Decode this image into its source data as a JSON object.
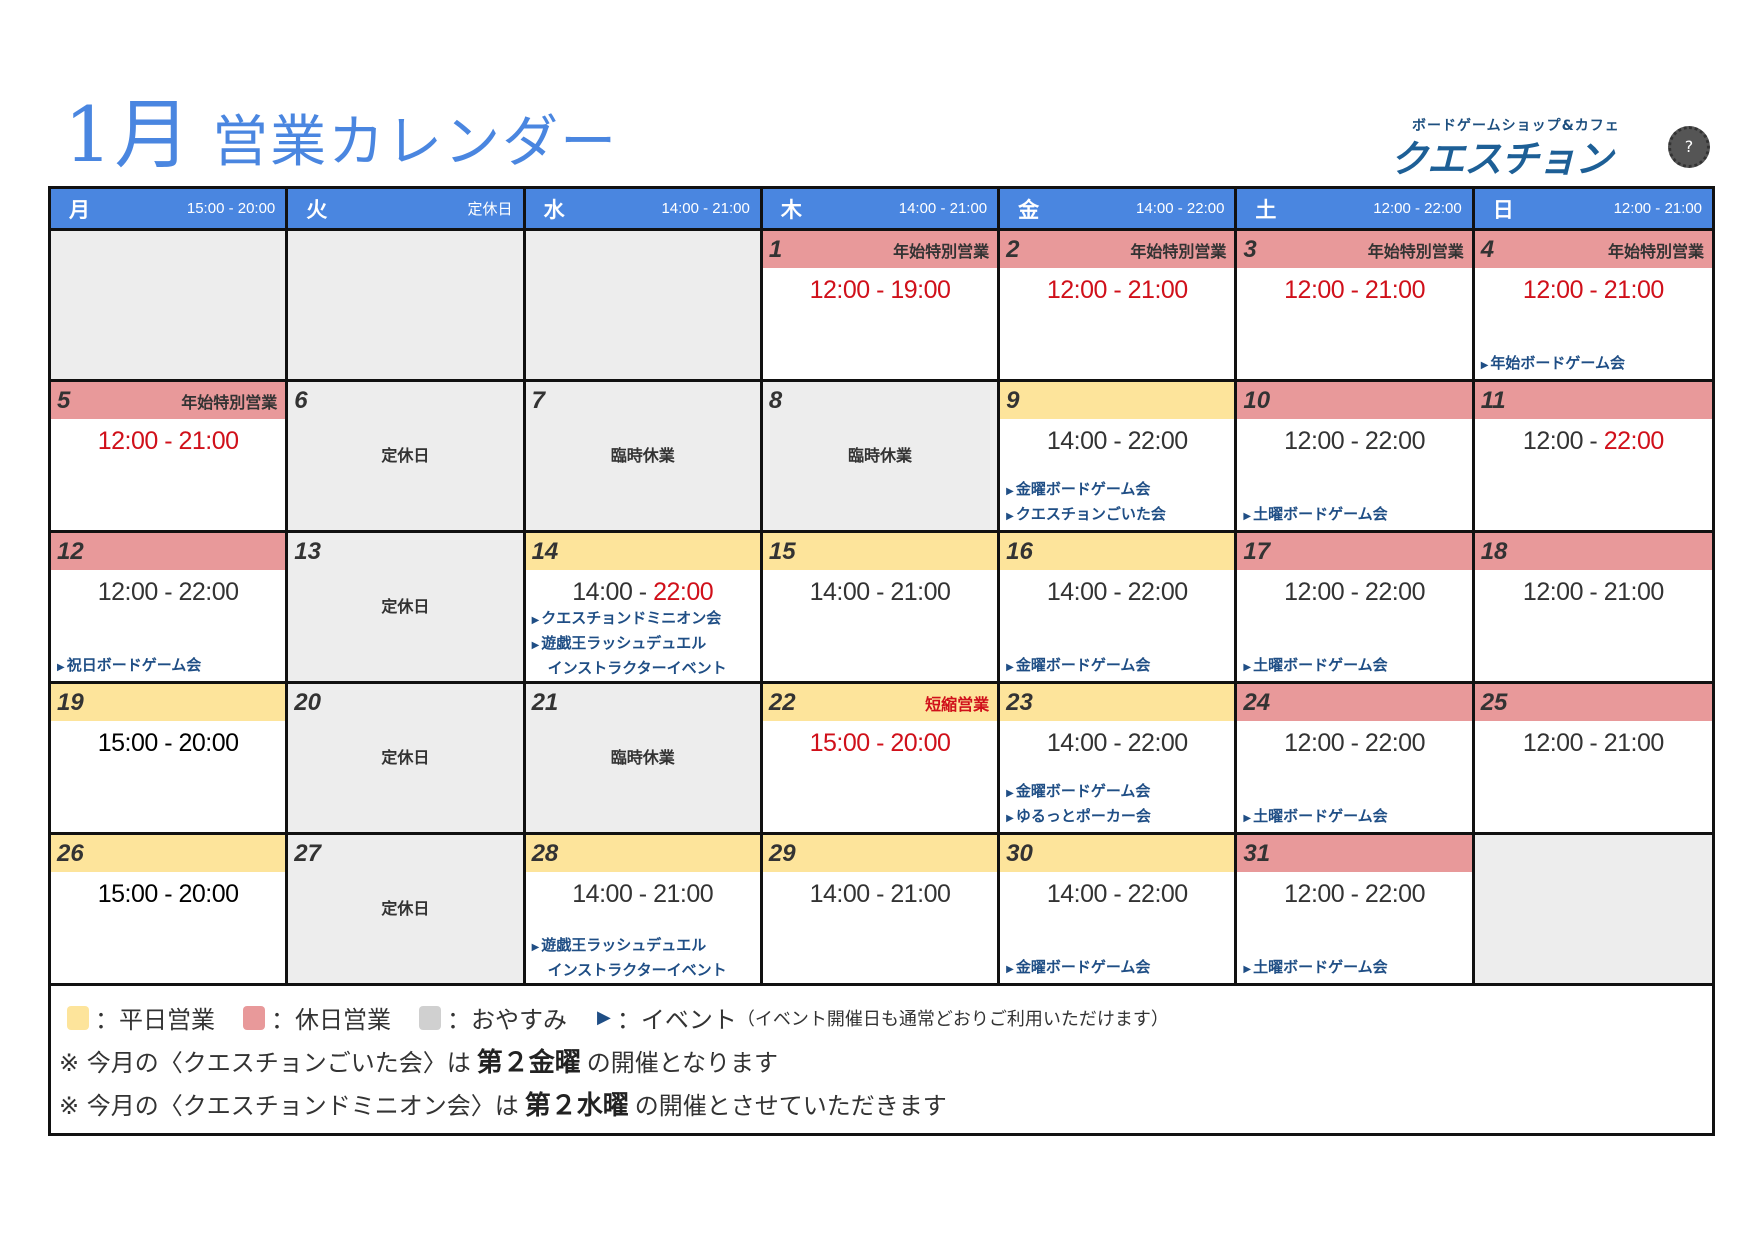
{
  "title": {
    "month": "1月",
    "text": " 営業カレンダー"
  },
  "logo": {
    "subtitle": "ボードゲームショップ&カフェ",
    "name": "クエスチョン"
  },
  "colors": {
    "header": "#4a86e0",
    "weekday": "#fde49b",
    "holiday": "#e8999a",
    "off": "#ededed",
    "event": "#1f4e85",
    "red": "#d0101a"
  },
  "header": [
    {
      "day": "月",
      "hours": "15:00 - 20:00"
    },
    {
      "day": "火",
      "hours": "定休日"
    },
    {
      "day": "水",
      "hours": "14:00 - 21:00"
    },
    {
      "day": "木",
      "hours": "14:00 - 21:00"
    },
    {
      "day": "金",
      "hours": "14:00 - 22:00"
    },
    {
      "day": "土",
      "hours": "12:00 - 22:00"
    },
    {
      "day": "日",
      "hours": "12:00 - 21:00"
    }
  ],
  "weeks": [
    [
      {
        "type": "empty"
      },
      {
        "type": "empty"
      },
      {
        "type": "empty"
      },
      {
        "type": "holiday",
        "day": "1",
        "label": "年始特別営業",
        "start": "12:00",
        "end": "19:00",
        "start_red": true,
        "end_red": true
      },
      {
        "type": "holiday",
        "day": "2",
        "label": "年始特別営業",
        "start": "12:00",
        "end": "21:00",
        "start_red": true,
        "end_red": true
      },
      {
        "type": "holiday",
        "day": "3",
        "label": "年始特別営業",
        "start": "12:00",
        "end": "21:00",
        "start_red": true,
        "end_red": true
      },
      {
        "type": "holiday",
        "day": "4",
        "label": "年始特別営業",
        "start": "12:00",
        "end": "21:00",
        "start_red": true,
        "end_red": true,
        "events": [
          [
            "年始ボードゲーム会"
          ]
        ]
      }
    ],
    [
      {
        "type": "holiday",
        "day": "5",
        "label": "年始特別営業",
        "start": "12:00",
        "end": "21:00",
        "start_red": true,
        "end_red": true
      },
      {
        "type": "off",
        "day": "6",
        "closed": "定休日"
      },
      {
        "type": "off",
        "day": "7",
        "closed": "臨時休業"
      },
      {
        "type": "off",
        "day": "8",
        "closed": "臨時休業"
      },
      {
        "type": "weekday",
        "day": "9",
        "start": "14:00",
        "end": "22:00",
        "events": [
          [
            "金曜ボードゲーム会"
          ],
          [
            "クエスチョンごいた会"
          ]
        ]
      },
      {
        "type": "holiday",
        "day": "10",
        "start": "12:00",
        "end": "22:00",
        "events": [
          [
            "土曜ボードゲーム会"
          ]
        ]
      },
      {
        "type": "holiday",
        "day": "11",
        "start": "12:00",
        "end": "22:00",
        "end_red": true
      }
    ],
    [
      {
        "type": "holiday",
        "day": "12",
        "start": "12:00",
        "end": "22:00",
        "events": [
          [
            "祝日ボードゲーム会"
          ]
        ]
      },
      {
        "type": "off",
        "day": "13",
        "closed": "定休日"
      },
      {
        "type": "weekday",
        "day": "14",
        "start": "14:00",
        "end": "22:00",
        "end_red": true,
        "events": [
          [
            "クエスチョンドミニオン会"
          ],
          [
            "遊戯王ラッシュデュエル",
            "インストラクターイベント"
          ]
        ]
      },
      {
        "type": "weekday",
        "day": "15",
        "start": "14:00",
        "end": "21:00"
      },
      {
        "type": "weekday",
        "day": "16",
        "start": "14:00",
        "end": "22:00",
        "events": [
          [
            "金曜ボードゲーム会"
          ]
        ]
      },
      {
        "type": "holiday",
        "day": "17",
        "start": "12:00",
        "end": "22:00",
        "events": [
          [
            "土曜ボードゲーム会"
          ]
        ]
      },
      {
        "type": "holiday",
        "day": "18",
        "start": "12:00",
        "end": "21:00"
      }
    ],
    [
      {
        "type": "weekday",
        "day": "19",
        "start": "15:00",
        "end": "20:00",
        "dark": true
      },
      {
        "type": "off",
        "day": "20",
        "closed": "定休日"
      },
      {
        "type": "off",
        "day": "21",
        "closed": "臨時休業"
      },
      {
        "type": "weekday",
        "day": "22",
        "label": "短縮営業",
        "label_red": true,
        "start": "15:00",
        "end": "20:00",
        "start_red": true,
        "end_red": true
      },
      {
        "type": "weekday",
        "day": "23",
        "start": "14:00",
        "end": "22:00",
        "events": [
          [
            "金曜ボードゲーム会"
          ],
          [
            "ゆるっとポーカー会"
          ]
        ]
      },
      {
        "type": "holiday",
        "day": "24",
        "start": "12:00",
        "end": "22:00",
        "events": [
          [
            "土曜ボードゲーム会"
          ]
        ]
      },
      {
        "type": "holiday",
        "day": "25",
        "start": "12:00",
        "end": "21:00"
      }
    ],
    [
      {
        "type": "weekday",
        "day": "26",
        "start": "15:00",
        "end": "20:00",
        "dark": true
      },
      {
        "type": "off",
        "day": "27",
        "closed": "定休日"
      },
      {
        "type": "weekday",
        "day": "28",
        "start": "14:00",
        "end": "21:00",
        "events": [
          [
            "遊戯王ラッシュデュエル",
            "インストラクターイベント"
          ]
        ]
      },
      {
        "type": "weekday",
        "day": "29",
        "start": "14:00",
        "end": "21:00"
      },
      {
        "type": "weekday",
        "day": "30",
        "start": "14:00",
        "end": "22:00",
        "events": [
          [
            "金曜ボードゲーム会"
          ]
        ]
      },
      {
        "type": "holiday",
        "day": "31",
        "start": "12:00",
        "end": "22:00",
        "events": [
          [
            "土曜ボードゲーム会"
          ]
        ]
      },
      {
        "type": "empty"
      }
    ]
  ],
  "time_separator": " - ",
  "legend": {
    "weekday": "：平日営業",
    "holiday": "：休日営業",
    "off": "：おやすみ",
    "event_marker": "▶",
    "event": "：イベント",
    "event_note": "（イベント開催日も通常どおりご利用いただけます）",
    "note1": {
      "prefix": "※ 今月の〈クエスチョンごいた会〉は",
      "bold": "第２金曜",
      "suffix": "の開催となります"
    },
    "note2": {
      "prefix": "※ 今月の〈クエスチョンドミニオン会〉は",
      "bold": "第２水曜",
      "suffix": "の開催とさせていただきます"
    }
  }
}
